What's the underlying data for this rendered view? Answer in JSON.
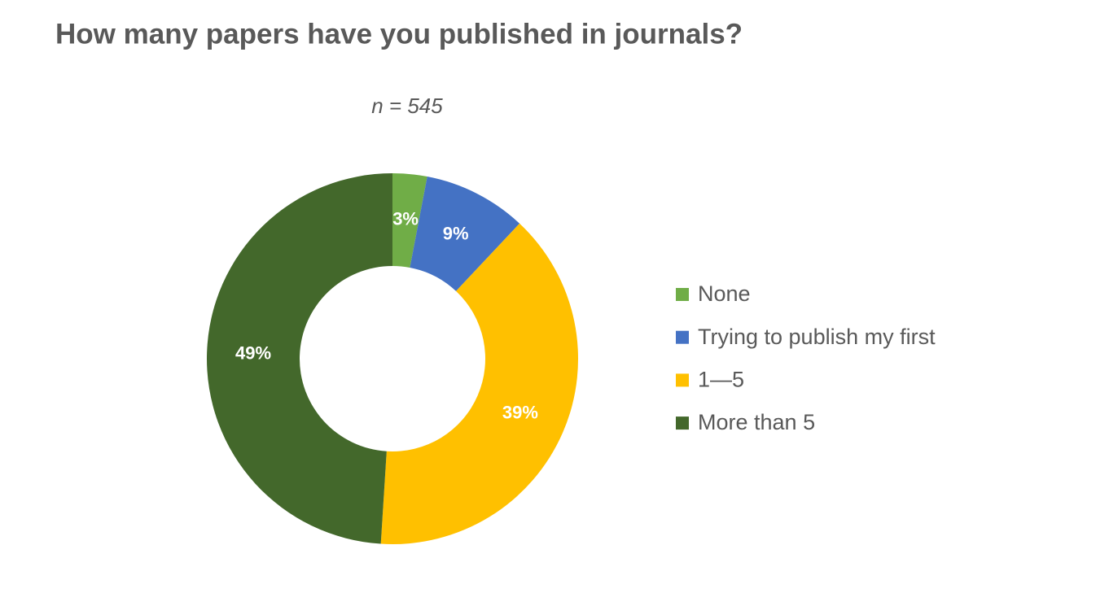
{
  "chart_data": {
    "type": "donut",
    "title": "How many papers have you published in journals?",
    "subtitle": "n = 545",
    "categories": [
      "None",
      "Trying to publish my first",
      "1—5",
      "More than 5"
    ],
    "values": [
      3,
      9,
      39,
      49
    ],
    "value_labels": [
      "3%",
      "9%",
      "39%",
      "49%"
    ],
    "colors": [
      "#70ad47",
      "#4472c4",
      "#ffc000",
      "#43682b"
    ],
    "legend": "right"
  }
}
